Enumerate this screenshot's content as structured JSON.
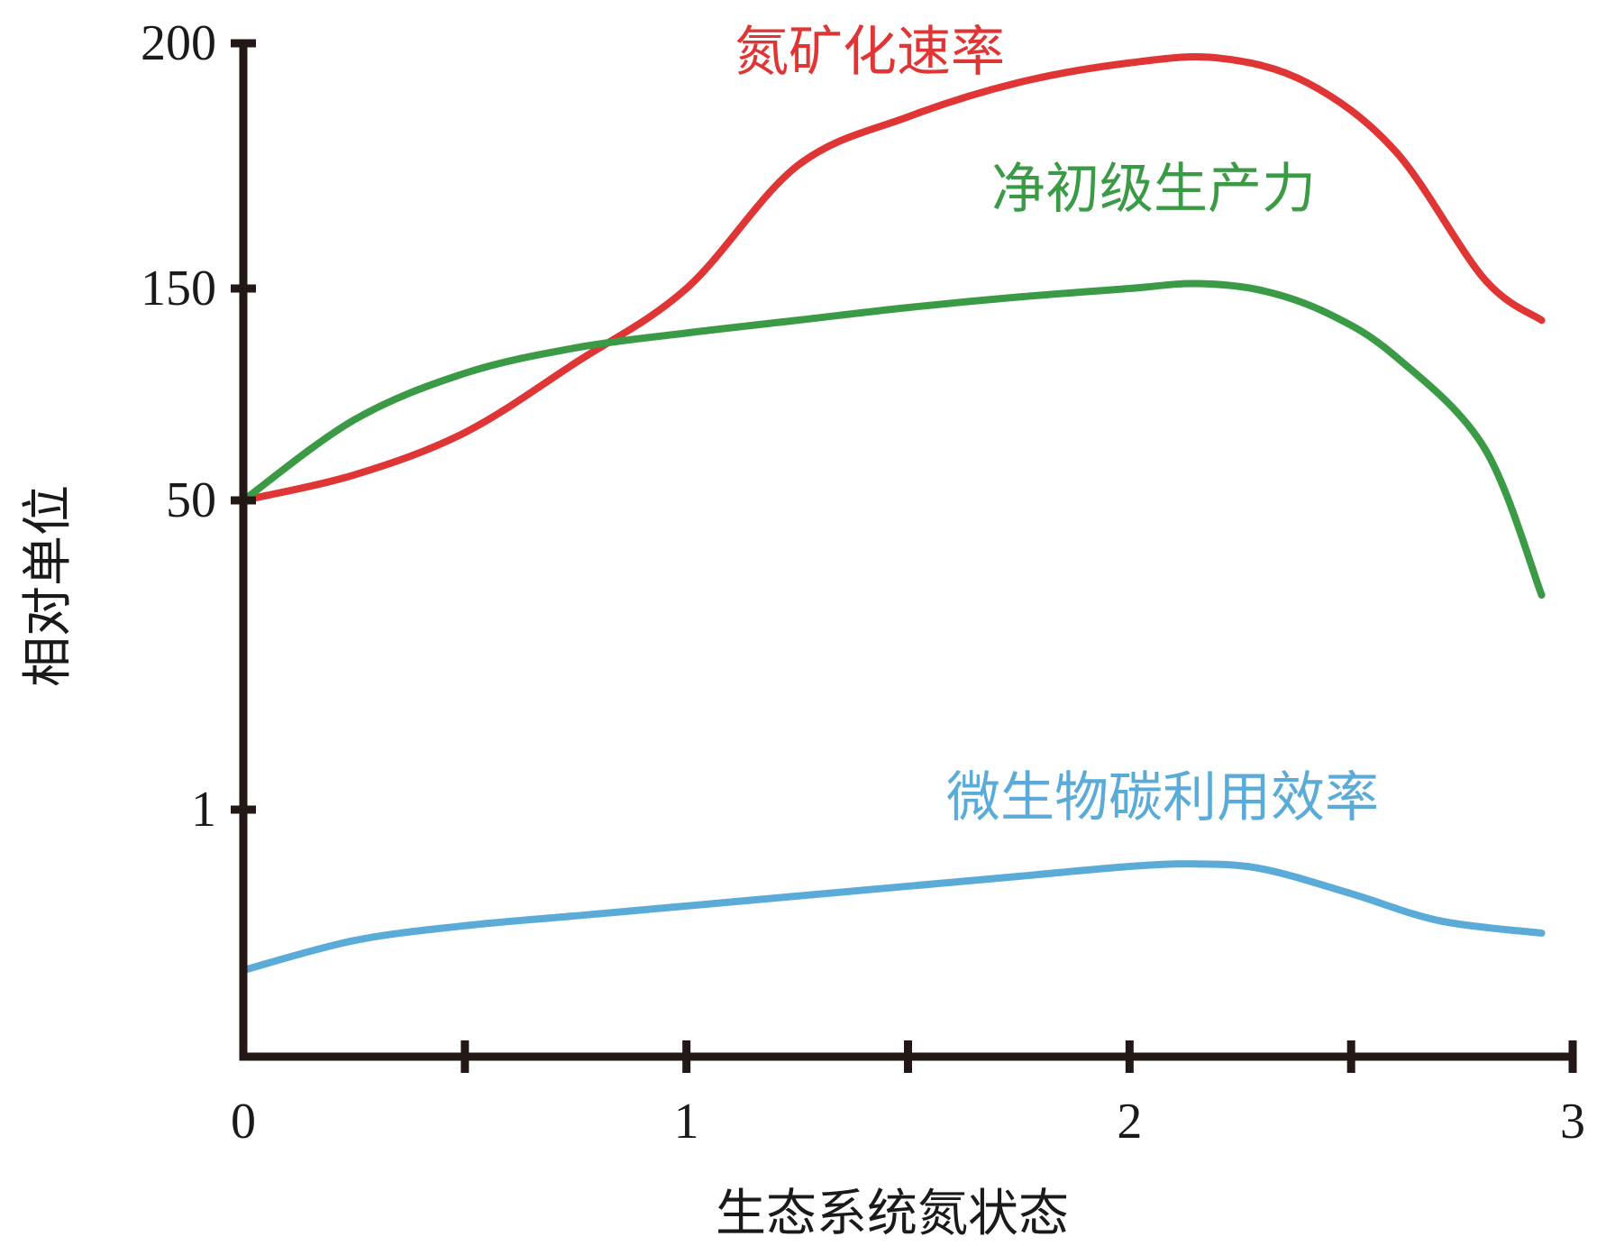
{
  "chart_data": {
    "type": "line",
    "xlabel": "生态系统氮状态",
    "ylabel": "相对单位",
    "x_ticks": [
      "0",
      "1",
      "2",
      "3"
    ],
    "y_ticks": [
      "200",
      "150",
      "50",
      "1"
    ],
    "xlim": [
      0,
      3
    ],
    "series": [
      {
        "name": "氮矿化速率",
        "color": "#e03535",
        "x": [
          0,
          0.25,
          0.5,
          0.75,
          1.0,
          1.25,
          1.5,
          1.75,
          2.0,
          2.2,
          2.4,
          2.6,
          2.8,
          2.93
        ],
        "y": [
          50,
          62,
          82,
          115,
          150,
          175,
          185,
          192,
          196,
          197,
          192,
          178,
          152,
          135
        ]
      },
      {
        "name": "净初级生产力",
        "color": "#3b9a46",
        "x": [
          0,
          0.25,
          0.5,
          0.75,
          1.0,
          1.25,
          1.5,
          1.75,
          2.0,
          2.15,
          2.3,
          2.45,
          2.6,
          2.8,
          2.93
        ],
        "y": [
          50,
          88,
          110,
          122,
          129,
          135,
          141,
          146,
          150,
          151,
          149,
          138,
          118,
          75,
          35
        ]
      },
      {
        "name": "微生物碳利用效率",
        "color": "#5aabd8",
        "x": [
          0,
          0.25,
          0.5,
          0.75,
          1.0,
          1.25,
          1.5,
          1.75,
          2.0,
          2.15,
          2.3,
          2.5,
          2.7,
          2.93
        ],
        "y": [
          0.35,
          0.47,
          0.53,
          0.57,
          0.61,
          0.65,
          0.69,
          0.73,
          0.77,
          0.78,
          0.76,
          0.66,
          0.55,
          0.5
        ]
      }
    ],
    "grid": false,
    "legend": "inline-labels"
  }
}
